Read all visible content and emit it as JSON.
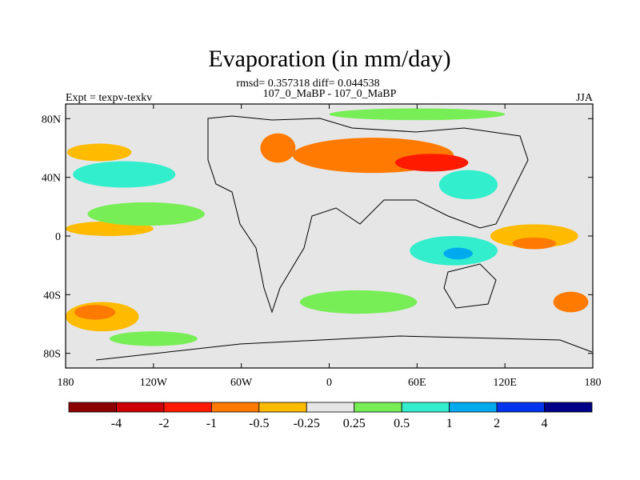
{
  "chart_data": {
    "type": "heatmap",
    "title": "Evaporation (in mm/day)",
    "stats_line": "rmsd= 0.357318 diff= 0.044538",
    "subtitle": "107_0_MaBP - 107_0_MaBP",
    "left_label": "Expt = texpv-texkv",
    "right_label": "JJA",
    "xlim": [
      -180,
      180
    ],
    "ylim": [
      -90,
      90
    ],
    "x_ticks": [
      {
        "value": -180,
        "label": "180"
      },
      {
        "value": -120,
        "label": "120W"
      },
      {
        "value": -60,
        "label": "60W"
      },
      {
        "value": 0,
        "label": "0"
      },
      {
        "value": 60,
        "label": "60E"
      },
      {
        "value": 120,
        "label": "120E"
      },
      {
        "value": 180,
        "label": "180"
      }
    ],
    "y_ticks": [
      {
        "value": 80,
        "label": "80N"
      },
      {
        "value": 40,
        "label": "40N"
      },
      {
        "value": 0,
        "label": "0"
      },
      {
        "value": -40,
        "label": "40S"
      },
      {
        "value": -80,
        "label": "80S"
      }
    ],
    "levels": [
      "-4",
      "-2",
      "-1",
      "-0.5",
      "-0.25",
      "0.25",
      "0.5",
      "1",
      "2",
      "4"
    ],
    "colors": [
      "#8b0000",
      "#cc0000",
      "#ff1a00",
      "#ff7a00",
      "#ffbb00",
      "#e6e6e6",
      "#77ee55",
      "#33eecc",
      "#00aaee",
      "#0033ee",
      "#000088"
    ],
    "background_color": "#e6e6e6",
    "regions": [
      {
        "name": "north-pacific-negative",
        "lon": -157,
        "lat": 57,
        "rlon": 22,
        "rlat": 6,
        "bin": 4
      },
      {
        "name": "north-pacific-positive",
        "lon": -140,
        "lat": 42,
        "rlon": 35,
        "rlat": 9,
        "bin": 7
      },
      {
        "name": "tropical-pacific-negative",
        "lon": -150,
        "lat": 5,
        "rlon": 30,
        "rlat": 5,
        "bin": 4
      },
      {
        "name": "tropical-pacific-positive",
        "lon": -125,
        "lat": 15,
        "rlon": 40,
        "rlat": 8,
        "bin": 6
      },
      {
        "name": "south-pacific-negative",
        "lon": -155,
        "lat": -55,
        "rlon": 25,
        "rlat": 10,
        "bin": 4
      },
      {
        "name": "south-pacific-strong-negative",
        "lon": -160,
        "lat": -52,
        "rlon": 14,
        "rlat": 5,
        "bin": 3
      },
      {
        "name": "greenland-negative",
        "lon": -35,
        "lat": 60,
        "rlon": 12,
        "rlat": 10,
        "bin": 3
      },
      {
        "name": "eurasia-negative",
        "lon": 30,
        "lat": 55,
        "rlon": 55,
        "rlat": 12,
        "bin": 3
      },
      {
        "name": "eurasia-strong-negative",
        "lon": 70,
        "lat": 50,
        "rlon": 25,
        "rlat": 6,
        "bin": 2
      },
      {
        "name": "arctic-positive",
        "lon": 60,
        "lat": 83,
        "rlon": 60,
        "rlat": 4,
        "bin": 6
      },
      {
        "name": "central-asia-positive",
        "lon": 95,
        "lat": 35,
        "rlon": 20,
        "rlat": 10,
        "bin": 7
      },
      {
        "name": "indian-ocean-positive",
        "lon": 85,
        "lat": -10,
        "rlon": 30,
        "rlat": 10,
        "bin": 7
      },
      {
        "name": "indian-ocean-strong-positive",
        "lon": 88,
        "lat": -12,
        "rlon": 10,
        "rlat": 4,
        "bin": 8
      },
      {
        "name": "west-pacific-negative",
        "lon": 140,
        "lat": 0,
        "rlon": 30,
        "rlat": 8,
        "bin": 4
      },
      {
        "name": "west-pacific-strong-negative",
        "lon": 140,
        "lat": -5,
        "rlon": 15,
        "rlat": 4,
        "bin": 3
      },
      {
        "name": "australia-south-negative",
        "lon": 165,
        "lat": -45,
        "rlon": 12,
        "rlat": 7,
        "bin": 3
      },
      {
        "name": "south-atlantic-positive",
        "lon": 20,
        "lat": -45,
        "rlon": 40,
        "rlat": 8,
        "bin": 6
      },
      {
        "name": "southern-ocean-positive",
        "lon": -120,
        "lat": -70,
        "rlon": 30,
        "rlat": 5,
        "bin": 6
      }
    ]
  }
}
